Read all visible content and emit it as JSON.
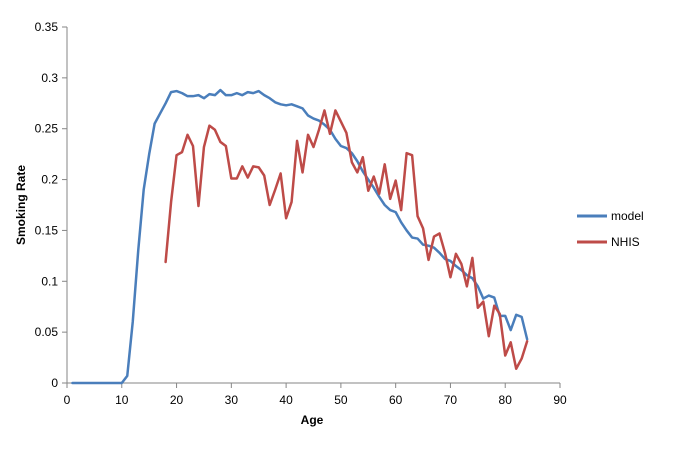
{
  "chart_data": {
    "type": "line",
    "title": "",
    "xlabel": "Age",
    "ylabel": "Smoking Rate",
    "xlim": [
      0,
      90
    ],
    "ylim": [
      0,
      0.35
    ],
    "x_ticks": [
      0,
      10,
      20,
      30,
      40,
      50,
      60,
      70,
      80,
      90
    ],
    "y_ticks": [
      0,
      0.05,
      0.1,
      0.15,
      0.2,
      0.25,
      0.3,
      0.35
    ],
    "x_tick_labels": [
      "0",
      "10",
      "20",
      "30",
      "40",
      "50",
      "60",
      "70",
      "80",
      "90"
    ],
    "y_tick_labels": [
      "0",
      "0.05",
      "0.1",
      "0.15",
      "0.2",
      "0.25",
      "0.3",
      "0.35"
    ],
    "grid": false,
    "legend_position": "right",
    "series": [
      {
        "name": "model",
        "color": "#4a7ebb",
        "x": [
          1,
          2,
          3,
          4,
          5,
          6,
          7,
          8,
          9,
          10,
          11,
          12,
          13,
          14,
          15,
          16,
          17,
          18,
          19,
          20,
          21,
          22,
          23,
          24,
          25,
          26,
          27,
          28,
          29,
          30,
          31,
          32,
          33,
          34,
          35,
          36,
          37,
          38,
          39,
          40,
          41,
          42,
          43,
          44,
          45,
          46,
          47,
          48,
          49,
          50,
          51,
          52,
          53,
          54,
          55,
          56,
          57,
          58,
          59,
          60,
          61,
          62,
          63,
          64,
          65,
          66,
          67,
          68,
          69,
          70,
          71,
          72,
          73,
          74,
          75,
          76,
          77,
          78,
          79,
          80,
          81,
          82,
          83,
          84
        ],
        "y": [
          0,
          0,
          0,
          0,
          0,
          0,
          0,
          0,
          0,
          0,
          0.007,
          0.06,
          0.13,
          0.19,
          0.225,
          0.255,
          0.265,
          0.275,
          0.286,
          0.287,
          0.285,
          0.282,
          0.282,
          0.283,
          0.28,
          0.284,
          0.283,
          0.288,
          0.283,
          0.283,
          0.285,
          0.283,
          0.286,
          0.285,
          0.287,
          0.283,
          0.28,
          0.276,
          0.274,
          0.273,
          0.274,
          0.272,
          0.27,
          0.263,
          0.26,
          0.258,
          0.254,
          0.249,
          0.24,
          0.233,
          0.231,
          0.226,
          0.218,
          0.208,
          0.2,
          0.192,
          0.183,
          0.175,
          0.17,
          0.168,
          0.158,
          0.15,
          0.143,
          0.142,
          0.136,
          0.135,
          0.133,
          0.128,
          0.122,
          0.12,
          0.115,
          0.111,
          0.106,
          0.103,
          0.095,
          0.083,
          0.086,
          0.084,
          0.066,
          0.066,
          0.052,
          0.067,
          0.065,
          0.043
        ]
      },
      {
        "name": "NHIS",
        "color": "#be4b48",
        "x": [
          18,
          19,
          20,
          21,
          22,
          23,
          24,
          25,
          26,
          27,
          28,
          29,
          30,
          31,
          32,
          33,
          34,
          35,
          36,
          37,
          38,
          39,
          40,
          41,
          42,
          43,
          44,
          45,
          46,
          47,
          48,
          49,
          50,
          51,
          52,
          53,
          54,
          55,
          56,
          57,
          58,
          59,
          60,
          61,
          62,
          63,
          64,
          65,
          66,
          67,
          68,
          69,
          70,
          71,
          72,
          73,
          74,
          75,
          76,
          77,
          78,
          79,
          80,
          81,
          82,
          83,
          84
        ],
        "y": [
          0.119,
          0.178,
          0.224,
          0.227,
          0.244,
          0.233,
          0.174,
          0.232,
          0.253,
          0.249,
          0.237,
          0.233,
          0.201,
          0.201,
          0.213,
          0.202,
          0.213,
          0.212,
          0.204,
          0.175,
          0.19,
          0.206,
          0.162,
          0.178,
          0.238,
          0.207,
          0.244,
          0.232,
          0.249,
          0.268,
          0.245,
          0.268,
          0.257,
          0.246,
          0.217,
          0.207,
          0.222,
          0.189,
          0.203,
          0.186,
          0.215,
          0.181,
          0.199,
          0.17,
          0.226,
          0.224,
          0.164,
          0.152,
          0.121,
          0.144,
          0.147,
          0.128,
          0.104,
          0.127,
          0.117,
          0.095,
          0.123,
          0.074,
          0.08,
          0.046,
          0.076,
          0.068,
          0.027,
          0.04,
          0.014,
          0.024,
          0.041
        ]
      }
    ]
  }
}
